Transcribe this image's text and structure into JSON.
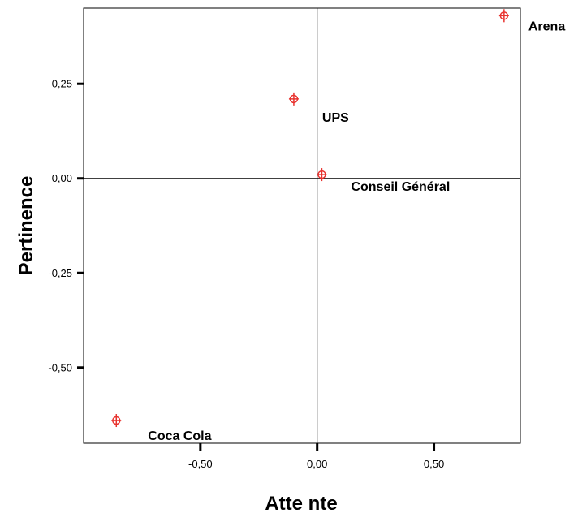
{
  "chart_data": {
    "type": "scatter",
    "title": "",
    "xlabel": "Atte nte",
    "ylabel": "Pertinence",
    "xlim": [
      -1.0,
      0.87
    ],
    "ylim": [
      -0.7,
      0.45
    ],
    "x_ticks": [
      {
        "value": -0.5,
        "label": "-0,50"
      },
      {
        "value": 0.0,
        "label": "0,00"
      },
      {
        "value": 0.5,
        "label": "0,50"
      }
    ],
    "y_ticks": [
      {
        "value": 0.25,
        "label": "0,25"
      },
      {
        "value": 0.0,
        "label": "0,00"
      },
      {
        "value": -0.25,
        "label": "-0,25"
      },
      {
        "value": -0.5,
        "label": "-0,50"
      }
    ],
    "reference_lines": {
      "x": 0.0,
      "y": 0.0
    },
    "grid": false,
    "marker_color": "#e8332f",
    "points": [
      {
        "label": "Arena",
        "x": 0.8,
        "y": 0.43
      },
      {
        "label": "UPS",
        "x": -0.1,
        "y": 0.21
      },
      {
        "label": "Conseil Général",
        "x": 0.02,
        "y": 0.01
      },
      {
        "label": "Coca Cola",
        "x": -0.86,
        "y": -0.64
      }
    ]
  }
}
